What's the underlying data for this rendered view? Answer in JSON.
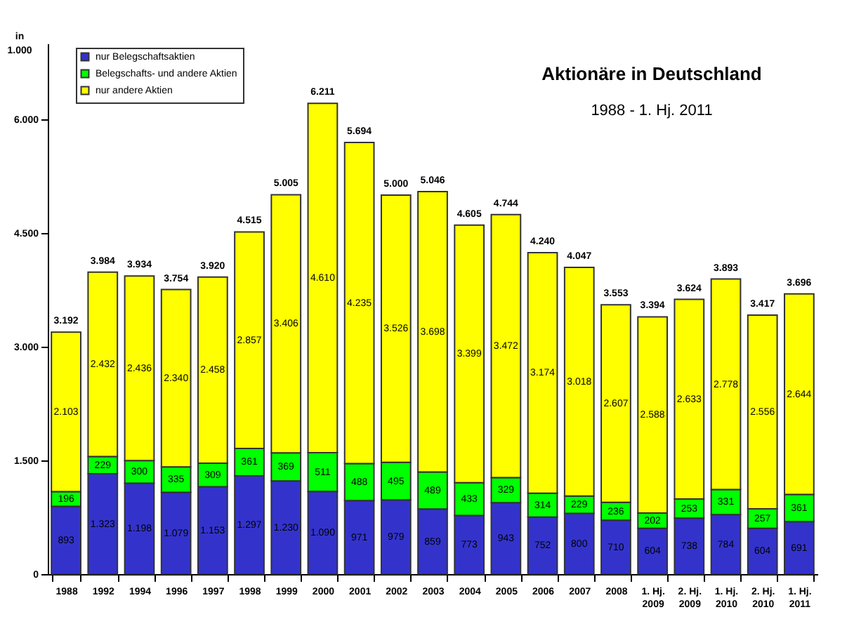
{
  "chart_data": {
    "type": "bar",
    "stacked": true,
    "title": "Aktionäre in Deutschland",
    "subtitle": "1988 - 1. Hj. 2011",
    "ylabel": "in 1.000",
    "categories": [
      "1988",
      "1992",
      "1994",
      "1996",
      "1997",
      "1998",
      "1999",
      "2000",
      "2001",
      "2002",
      "2003",
      "2004",
      "2005",
      "2006",
      "2007",
      "2008",
      "1. Hj. 2009",
      "2. Hj. 2009",
      "1. Hj. 2010",
      "2. Hj. 2010",
      "1. Hj. 2011"
    ],
    "series": [
      {
        "name": "nur Belegschaftsaktien",
        "color": "#3333cc",
        "values": [
          893,
          1323,
          1198,
          1079,
          1153,
          1297,
          1230,
          1090,
          971,
          979,
          859,
          773,
          943,
          752,
          800,
          710,
          604,
          738,
          784,
          604,
          691
        ],
        "value_labels": [
          "893",
          "1.323",
          "1.198",
          "1.079",
          "1.153",
          "1.297",
          "1.230",
          "1.090",
          "971",
          "979",
          "859",
          "773",
          "943",
          "752",
          "800",
          "710",
          "604",
          "738",
          "784",
          "604",
          "691"
        ]
      },
      {
        "name": "Belegschafts- und andere Aktien",
        "color": "#00ff00",
        "values": [
          196,
          229,
          300,
          335,
          309,
          361,
          369,
          511,
          488,
          495,
          489,
          433,
          329,
          314,
          229,
          236,
          202,
          253,
          331,
          257,
          361
        ],
        "value_labels": [
          "196",
          "229",
          "300",
          "335",
          "309",
          "361",
          "369",
          "511",
          "488",
          "495",
          "489",
          "433",
          "329",
          "314",
          "229",
          "236",
          "202",
          "253",
          "331",
          "257",
          "361"
        ]
      },
      {
        "name": "nur andere Aktien",
        "color": "#ffff00",
        "values": [
          2103,
          2432,
          2436,
          2340,
          2458,
          2857,
          3406,
          4610,
          4235,
          3526,
          3698,
          3399,
          3472,
          3174,
          3018,
          2607,
          2588,
          2633,
          2778,
          2556,
          2644
        ],
        "value_labels": [
          "2.103",
          "2.432",
          "2.436",
          "2.340",
          "2.458",
          "2.857",
          "3.406",
          "4.610",
          "4.235",
          "3.526",
          "3.698",
          "3.399",
          "3.472",
          "3.174",
          "3.018",
          "2.607",
          "2.588",
          "2.633",
          "2.778",
          "2.556",
          "2.644"
        ]
      }
    ],
    "totals": [
      "3.192",
      "3.984",
      "3.934",
      "3.754",
      "3.920",
      "4.515",
      "5.005",
      "6.211",
      "5.694",
      "5.000",
      "5.046",
      "4.605",
      "4.744",
      "4.240",
      "4.047",
      "3.553",
      "3.394",
      "3.624",
      "3.893",
      "3.417",
      "3.696"
    ],
    "ylim": [
      0,
      7000
    ],
    "yticks": [
      0,
      {
        "value": 1500,
        "label": "1.500"
      },
      {
        "value": 3000,
        "label": "3.000"
      },
      {
        "value": 4500,
        "label": "4.500"
      },
      {
        "value": 6000,
        "label": "6.000"
      }
    ],
    "legend": "top left",
    "grid": false
  }
}
